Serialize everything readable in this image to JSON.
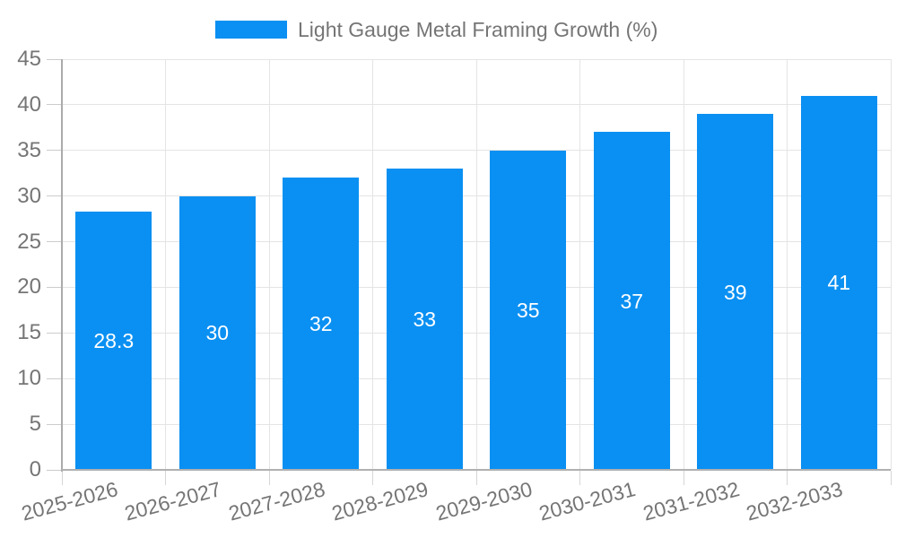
{
  "legend": {
    "label": "Light Gauge Metal Framing Growth (%)",
    "swatch_color": "#0a90f2"
  },
  "chart_data": {
    "type": "bar",
    "title": "",
    "xlabel": "",
    "ylabel": "",
    "categories": [
      "2025-2026",
      "2026-2027",
      "2027-2028",
      "2028-2029",
      "2029-2030",
      "2030-2031",
      "2031-2032",
      "2032-2033"
    ],
    "series": [
      {
        "name": "Light Gauge Metal Framing Growth (%)",
        "values": [
          28.3,
          30,
          32,
          33,
          35,
          37,
          39,
          41
        ]
      }
    ],
    "data_labels": [
      "28.3",
      "30",
      "32",
      "33",
      "35",
      "37",
      "39",
      "41"
    ],
    "y_ticks": [
      0,
      5,
      10,
      15,
      20,
      25,
      30,
      35,
      40,
      45
    ],
    "ylim": [
      0,
      45
    ],
    "grid": true,
    "legend_position": "top-center",
    "bar_color": "#0a90f2",
    "bar_label_color": "#ffffff",
    "axis_text_color": "#757575",
    "gridline_color": "#e4e4e4"
  }
}
